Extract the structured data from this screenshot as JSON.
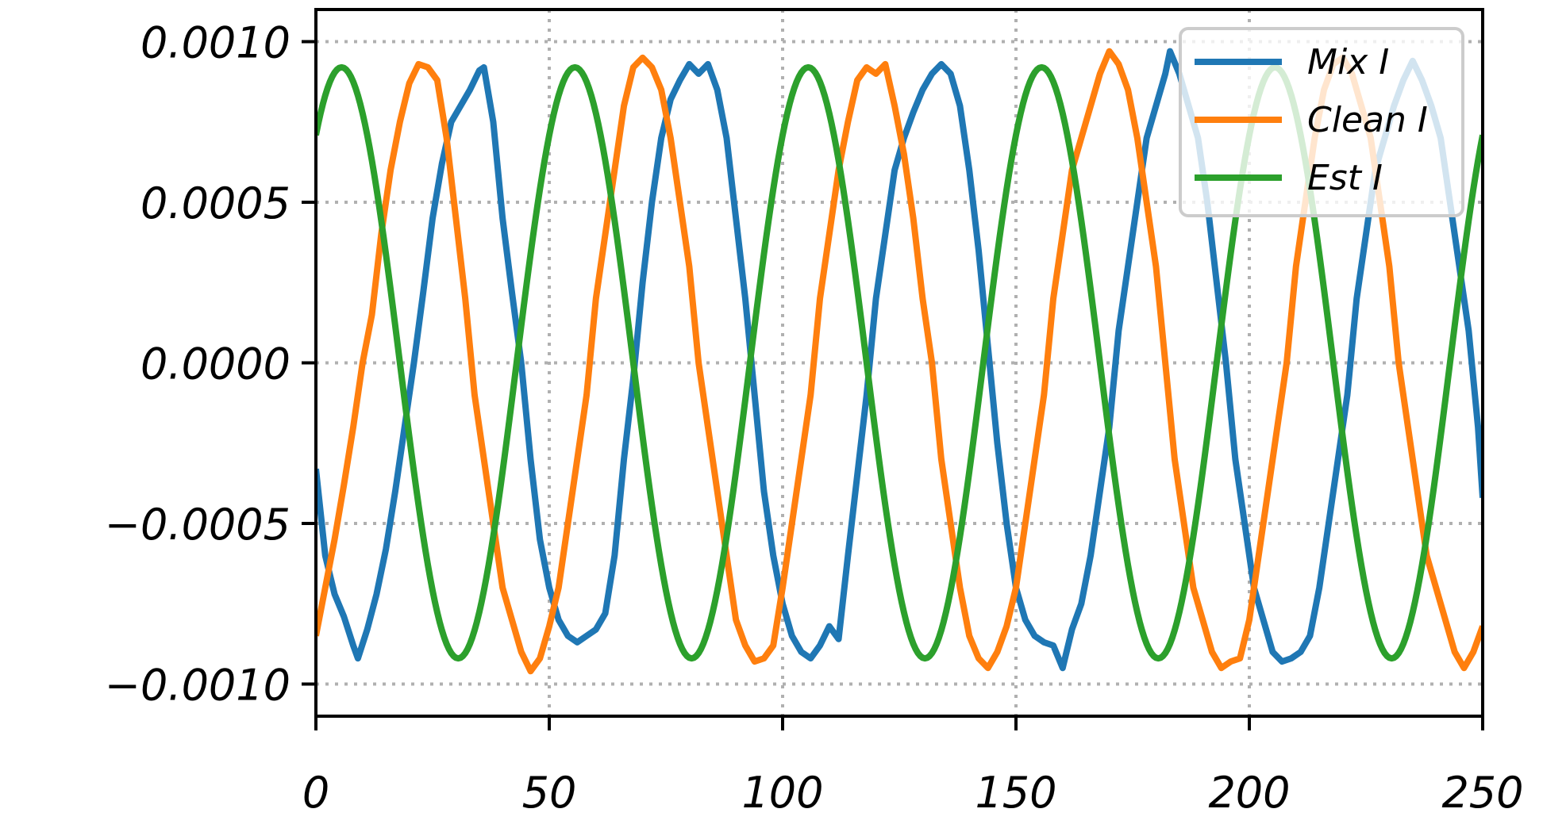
{
  "chart_data": {
    "type": "line",
    "title": "",
    "xlabel": "",
    "ylabel": "",
    "xlim": [
      0,
      250
    ],
    "ylim": [
      -0.0011,
      0.0011
    ],
    "xticks": [
      0,
      50,
      100,
      150,
      200,
      250
    ],
    "yticks": [
      -0.001,
      -0.0005,
      0.0,
      0.0005,
      0.001
    ],
    "xtick_labels": [
      "0",
      "50",
      "100",
      "150",
      "200",
      "250"
    ],
    "ytick_labels": [
      "−0.0010",
      "−0.0005",
      "0.0000",
      "0.0005",
      "0.0010"
    ],
    "grid": true,
    "legend_position": "top-right",
    "series": [
      {
        "name": "Mix I",
        "color": "#1f77b4",
        "points": [
          [
            0,
            -0.00033
          ],
          [
            2,
            -0.0006
          ],
          [
            4,
            -0.00072
          ],
          [
            6,
            -0.00079
          ],
          [
            8,
            -0.00088
          ],
          [
            9,
            -0.00092
          ],
          [
            11,
            -0.00083
          ],
          [
            13,
            -0.00072
          ],
          [
            15,
            -0.00058
          ],
          [
            17,
            -0.0004
          ],
          [
            19,
            -0.0002
          ],
          [
            21,
            0.0
          ],
          [
            23,
            0.00022
          ],
          [
            25,
            0.00045
          ],
          [
            27,
            0.00062
          ],
          [
            29,
            0.00075
          ],
          [
            31,
            0.0008
          ],
          [
            33,
            0.00085
          ],
          [
            35,
            0.00091
          ],
          [
            36,
            0.00092
          ],
          [
            38,
            0.00075
          ],
          [
            40,
            0.00045
          ],
          [
            42,
            0.00022
          ],
          [
            44,
            0.0
          ],
          [
            46,
            -0.0003
          ],
          [
            48,
            -0.00055
          ],
          [
            50,
            -0.0007
          ],
          [
            52,
            -0.0008
          ],
          [
            54,
            -0.00085
          ],
          [
            56,
            -0.00087
          ],
          [
            58,
            -0.00085
          ],
          [
            60,
            -0.00083
          ],
          [
            62,
            -0.00078
          ],
          [
            64,
            -0.0006
          ],
          [
            66,
            -0.0003
          ],
          [
            68,
            -5e-05
          ],
          [
            70,
            0.00025
          ],
          [
            72,
            0.0005
          ],
          [
            74,
            0.0007
          ],
          [
            76,
            0.00082
          ],
          [
            78,
            0.00088
          ],
          [
            80,
            0.00093
          ],
          [
            82,
            0.0009
          ],
          [
            84,
            0.00093
          ],
          [
            86,
            0.00085
          ],
          [
            88,
            0.0007
          ],
          [
            90,
            0.00045
          ],
          [
            92,
            0.0002
          ],
          [
            94,
            -0.0001
          ],
          [
            96,
            -0.0004
          ],
          [
            98,
            -0.0006
          ],
          [
            100,
            -0.00075
          ],
          [
            102,
            -0.00085
          ],
          [
            104,
            -0.0009
          ],
          [
            106,
            -0.00092
          ],
          [
            108,
            -0.00088
          ],
          [
            110,
            -0.00082
          ],
          [
            112,
            -0.00086
          ],
          [
            114,
            -0.0006
          ],
          [
            116,
            -0.00035
          ],
          [
            118,
            -0.0001
          ],
          [
            120,
            0.0002
          ],
          [
            122,
            0.0004
          ],
          [
            124,
            0.0006
          ],
          [
            126,
            0.0007
          ],
          [
            128,
            0.00078
          ],
          [
            130,
            0.00085
          ],
          [
            132,
            0.0009
          ],
          [
            134,
            0.00093
          ],
          [
            136,
            0.0009
          ],
          [
            138,
            0.0008
          ],
          [
            140,
            0.0006
          ],
          [
            142,
            0.00035
          ],
          [
            144,
            5e-05
          ],
          [
            146,
            -0.00025
          ],
          [
            148,
            -0.0005
          ],
          [
            150,
            -0.0007
          ],
          [
            152,
            -0.0008
          ],
          [
            154,
            -0.00085
          ],
          [
            156,
            -0.00087
          ],
          [
            158,
            -0.00088
          ],
          [
            160,
            -0.00095
          ],
          [
            162,
            -0.00083
          ],
          [
            164,
            -0.00075
          ],
          [
            166,
            -0.0006
          ],
          [
            168,
            -0.0004
          ],
          [
            170,
            -0.0002
          ],
          [
            172,
            0.0001
          ],
          [
            174,
            0.0003
          ],
          [
            176,
            0.0005
          ],
          [
            178,
            0.0007
          ],
          [
            180,
            0.0008
          ],
          [
            182,
            0.0009
          ],
          [
            183,
            0.00097
          ],
          [
            185,
            0.0009
          ],
          [
            187,
            0.0008
          ],
          [
            189,
            0.0007
          ],
          [
            191,
            0.0005
          ],
          [
            193,
            0.00025
          ],
          [
            195,
            0.0
          ],
          [
            197,
            -0.0003
          ],
          [
            199,
            -0.0005
          ],
          [
            201,
            -0.0007
          ],
          [
            203,
            -0.0008
          ],
          [
            205,
            -0.0009
          ],
          [
            207,
            -0.00093
          ],
          [
            209,
            -0.00092
          ],
          [
            211,
            -0.0009
          ],
          [
            213,
            -0.00085
          ],
          [
            215,
            -0.0007
          ],
          [
            217,
            -0.0005
          ],
          [
            219,
            -0.0003
          ],
          [
            221,
            -0.0001
          ],
          [
            223,
            0.0002
          ],
          [
            225,
            0.0004
          ],
          [
            227,
            0.0006
          ],
          [
            229,
            0.0007
          ],
          [
            231,
            0.0008
          ],
          [
            233,
            0.00088
          ],
          [
            235,
            0.00094
          ],
          [
            237,
            0.00088
          ],
          [
            239,
            0.0008
          ],
          [
            241,
            0.0007
          ],
          [
            243,
            0.0005
          ],
          [
            245,
            0.0003
          ],
          [
            247,
            0.0001
          ],
          [
            249,
            -0.0002
          ],
          [
            250,
            -0.00042
          ]
        ]
      },
      {
        "name": "Clean I",
        "color": "#ff7f0e",
        "points": [
          [
            0,
            -0.00085
          ],
          [
            2,
            -0.0007
          ],
          [
            4,
            -0.00055
          ],
          [
            6,
            -0.00038
          ],
          [
            8,
            -0.0002
          ],
          [
            10,
            0.0
          ],
          [
            12,
            0.00015
          ],
          [
            14,
            0.0004
          ],
          [
            16,
            0.0006
          ],
          [
            18,
            0.00075
          ],
          [
            20,
            0.00087
          ],
          [
            22,
            0.00093
          ],
          [
            24,
            0.00092
          ],
          [
            26,
            0.00088
          ],
          [
            28,
            0.0007
          ],
          [
            30,
            0.00045
          ],
          [
            32,
            0.0002
          ],
          [
            34,
            -0.0001
          ],
          [
            36,
            -0.0003
          ],
          [
            38,
            -0.0005
          ],
          [
            40,
            -0.0007
          ],
          [
            42,
            -0.0008
          ],
          [
            44,
            -0.0009
          ],
          [
            46,
            -0.00096
          ],
          [
            48,
            -0.00092
          ],
          [
            50,
            -0.00082
          ],
          [
            52,
            -0.0007
          ],
          [
            54,
            -0.0005
          ],
          [
            56,
            -0.0003
          ],
          [
            58,
            -0.0001
          ],
          [
            60,
            0.0002
          ],
          [
            62,
            0.0004
          ],
          [
            64,
            0.0006
          ],
          [
            66,
            0.0008
          ],
          [
            68,
            0.00092
          ],
          [
            70,
            0.00095
          ],
          [
            72,
            0.00092
          ],
          [
            74,
            0.00085
          ],
          [
            76,
            0.0007
          ],
          [
            78,
            0.0005
          ],
          [
            80,
            0.0003
          ],
          [
            82,
            0.0
          ],
          [
            84,
            -0.0002
          ],
          [
            86,
            -0.0004
          ],
          [
            88,
            -0.0006
          ],
          [
            90,
            -0.0008
          ],
          [
            92,
            -0.00088
          ],
          [
            94,
            -0.00093
          ],
          [
            96,
            -0.00092
          ],
          [
            98,
            -0.00088
          ],
          [
            100,
            -0.0007
          ],
          [
            102,
            -0.0005
          ],
          [
            104,
            -0.0003
          ],
          [
            106,
            -0.0001
          ],
          [
            108,
            0.0002
          ],
          [
            110,
            0.0004
          ],
          [
            112,
            0.0006
          ],
          [
            114,
            0.00075
          ],
          [
            116,
            0.00088
          ],
          [
            118,
            0.00092
          ],
          [
            120,
            0.0009
          ],
          [
            122,
            0.00093
          ],
          [
            124,
            0.0008
          ],
          [
            126,
            0.00065
          ],
          [
            128,
            0.00045
          ],
          [
            130,
            0.0002
          ],
          [
            132,
            0.0
          ],
          [
            134,
            -0.0003
          ],
          [
            136,
            -0.0005
          ],
          [
            138,
            -0.0007
          ],
          [
            140,
            -0.00085
          ],
          [
            142,
            -0.00092
          ],
          [
            144,
            -0.00095
          ],
          [
            146,
            -0.0009
          ],
          [
            148,
            -0.00082
          ],
          [
            150,
            -0.0007
          ],
          [
            152,
            -0.0005
          ],
          [
            154,
            -0.0003
          ],
          [
            156,
            -0.0001
          ],
          [
            158,
            0.0002
          ],
          [
            160,
            0.0004
          ],
          [
            162,
            0.0006
          ],
          [
            164,
            0.0007
          ],
          [
            166,
            0.0008
          ],
          [
            168,
            0.0009
          ],
          [
            170,
            0.00097
          ],
          [
            172,
            0.00093
          ],
          [
            174,
            0.00085
          ],
          [
            176,
            0.0007
          ],
          [
            178,
            0.0005
          ],
          [
            180,
            0.0003
          ],
          [
            182,
            0.0
          ],
          [
            184,
            -0.0003
          ],
          [
            186,
            -0.0005
          ],
          [
            188,
            -0.0007
          ],
          [
            190,
            -0.0008
          ],
          [
            192,
            -0.0009
          ],
          [
            194,
            -0.00095
          ],
          [
            196,
            -0.00093
          ],
          [
            198,
            -0.00092
          ],
          [
            200,
            -0.0008
          ],
          [
            202,
            -0.0006
          ],
          [
            204,
            -0.0004
          ],
          [
            206,
            -0.0002
          ],
          [
            208,
            0.0
          ],
          [
            210,
            0.0003
          ],
          [
            212,
            0.0005
          ],
          [
            214,
            0.0007
          ],
          [
            216,
            0.00085
          ],
          [
            218,
            0.00093
          ],
          [
            220,
            0.00095
          ],
          [
            222,
            0.0009
          ],
          [
            224,
            0.0008
          ],
          [
            226,
            0.0007
          ],
          [
            228,
            0.0005
          ],
          [
            230,
            0.0003
          ],
          [
            232,
            0.0
          ],
          [
            234,
            -0.0002
          ],
          [
            236,
            -0.0004
          ],
          [
            238,
            -0.0006
          ],
          [
            240,
            -0.0007
          ],
          [
            242,
            -0.0008
          ],
          [
            244,
            -0.0009
          ],
          [
            246,
            -0.00095
          ],
          [
            248,
            -0.0009
          ],
          [
            250,
            -0.00082
          ]
        ]
      },
      {
        "name": "Est I",
        "color": "#2ca02c",
        "amplitude": 0.00092,
        "period": 50,
        "peak_x": 5.5,
        "x_range": [
          0,
          250
        ],
        "samples": 501
      }
    ]
  }
}
